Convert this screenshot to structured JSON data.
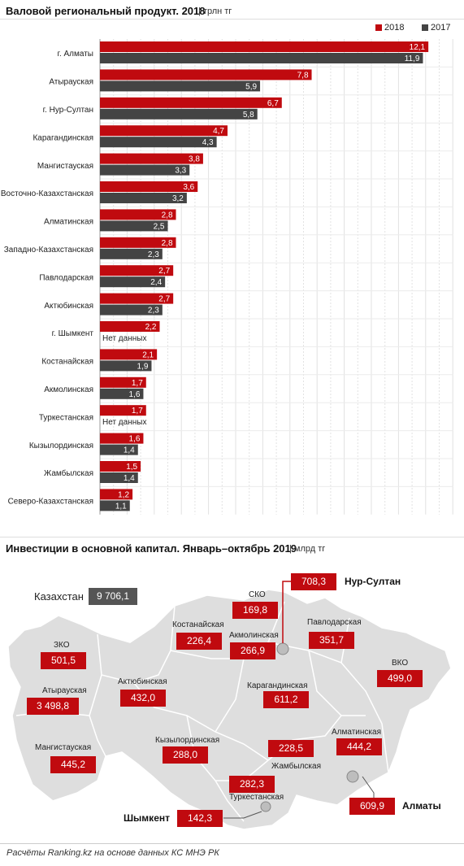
{
  "chart1": {
    "title": "Валовой региональный продукт. 2018",
    "unit": "| трлн тг",
    "legend": [
      {
        "label": "2018",
        "color": "#c00a0f"
      },
      {
        "label": "2017",
        "color": "#444444"
      }
    ]
  },
  "chart2": {
    "title": "Инвестиции в основной капитал. Январь–октябрь 2019",
    "unit": "| млрд тг"
  },
  "footer": "Расчёты Ranking.kz на основе данных КС МНЭ РК",
  "chart_data": [
    {
      "type": "bar",
      "orientation": "horizontal",
      "title": "Валовой региональный продукт. 2018",
      "unit": "трлн тг",
      "categories": [
        "г. Алматы",
        "Атырауская",
        "г. Нур-Султан",
        "Карагандинская",
        "Мангистауская",
        "Восточно-Казахстанская",
        "Алматинская",
        "Западно-Казахстанская",
        "Павлодарская",
        "Актюбинская",
        "г. Шымкент",
        "Костанайская",
        "Акмолинская",
        "Туркестанская",
        "Кызылординская",
        "Жамбылская",
        "Северо-Казахстанская"
      ],
      "series": [
        {
          "name": "2018",
          "color": "#c00a0f",
          "values": [
            12.1,
            7.8,
            6.7,
            4.7,
            3.8,
            3.6,
            2.8,
            2.8,
            2.7,
            2.7,
            2.2,
            2.1,
            1.7,
            1.7,
            1.6,
            1.5,
            1.2
          ],
          "labels": [
            "12,1",
            "7,8",
            "6,7",
            "4,7",
            "3,8",
            "3,6",
            "2,8",
            "2,8",
            "2,7",
            "2,7",
            "2,2",
            "2,1",
            "1,7",
            "1,7",
            "1,6",
            "1,5",
            "1,2"
          ]
        },
        {
          "name": "2017",
          "color": "#444444",
          "values": [
            11.9,
            5.9,
            5.8,
            4.3,
            3.3,
            3.2,
            2.5,
            2.3,
            2.4,
            2.3,
            null,
            1.9,
            1.6,
            null,
            1.4,
            1.4,
            1.1
          ],
          "labels": [
            "11,9",
            "5,9",
            "5,8",
            "4,3",
            "3,3",
            "3,2",
            "2,5",
            "2,3",
            "2,4",
            "2,3",
            "Нет данных",
            "1,9",
            "1,6",
            "Нет данных",
            "1,4",
            "1,4",
            "1,1"
          ]
        }
      ],
      "xlim": [
        0,
        13
      ],
      "grid": true,
      "legend_position": "top-right"
    },
    {
      "type": "map",
      "title": "Инвестиции в основной капитал. Январь–октябрь 2019",
      "unit": "млрд тг",
      "total": {
        "label": "Казахстан",
        "value": "9 706,1"
      },
      "regions": [
        {
          "name": "ЗКО",
          "value": "501,5"
        },
        {
          "name": "Атырауская",
          "value": "3 498,8"
        },
        {
          "name": "Мангистауская",
          "value": "445,2"
        },
        {
          "name": "Актюбинская",
          "value": "432,0"
        },
        {
          "name": "Костанайская",
          "value": "226,4"
        },
        {
          "name": "СКО",
          "value": "169,8"
        },
        {
          "name": "Акмолинская",
          "value": "266,9"
        },
        {
          "name": "Павлодарская",
          "value": "351,7"
        },
        {
          "name": "ВКО",
          "value": "499,0"
        },
        {
          "name": "Карагандинская",
          "value": "611,2"
        },
        {
          "name": "Кызылординская",
          "value": "288,0"
        },
        {
          "name": "Жамбылская",
          "value": "228,5"
        },
        {
          "name": "Алматинская",
          "value": "444,2"
        },
        {
          "name": "Туркестанская",
          "value": "282,3"
        }
      ],
      "cities": [
        {
          "name": "Нур-Султан",
          "value": "708,3"
        },
        {
          "name": "Алматы",
          "value": "609,9"
        },
        {
          "name": "Шымкент",
          "value": "142,3"
        }
      ]
    }
  ]
}
